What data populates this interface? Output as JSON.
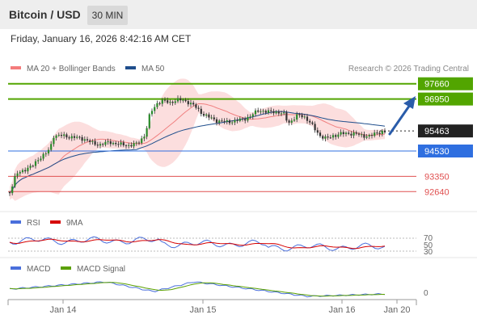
{
  "header": {
    "title": "Bitcoin / USD",
    "timeframe": "30 MIN"
  },
  "timestamp": "Friday, January 16, 2026 8:42:16 AM CET",
  "legend_main": [
    {
      "label": "MA 20 + Bollinger Bands",
      "color": "#f47c7c"
    },
    {
      "label": "MA 50",
      "color": "#1f4e8c"
    }
  ],
  "copyright": "Research © 2026 Trading Central",
  "levels": [
    {
      "label": "97660",
      "value": 97660,
      "kind": "target",
      "box": true
    },
    {
      "label": "96950",
      "value": 96950,
      "kind": "target",
      "box": true
    },
    {
      "label": "95463",
      "value": 95463,
      "kind": "last",
      "box": true
    },
    {
      "label": "94530",
      "value": 94530,
      "kind": "pivot",
      "box": true
    },
    {
      "label": "93350",
      "value": 93350,
      "kind": "support",
      "box": false
    },
    {
      "label": "92640",
      "value": 92640,
      "kind": "support",
      "box": false
    }
  ],
  "rsi": {
    "legend": [
      {
        "label": "RSI",
        "color": "#4a6fdc"
      },
      {
        "label": "9MA",
        "color": "#d60000"
      }
    ],
    "ticks": [
      "70",
      "50",
      "30"
    ]
  },
  "macd": {
    "legend": [
      {
        "label": "MACD",
        "color": "#4a6fdc"
      },
      {
        "label": "MACD Signal",
        "color": "#5aa000"
      }
    ],
    "ticks": [
      "0"
    ]
  },
  "x_labels": [
    "Jan 14",
    "Jan 15",
    "Jan 16",
    "Jan 20"
  ],
  "colors": {
    "green": "#52a500",
    "blue": "#2f6fe0",
    "red": "#e05050",
    "dark": "#222222",
    "arrow": "#2a5caa"
  }
}
